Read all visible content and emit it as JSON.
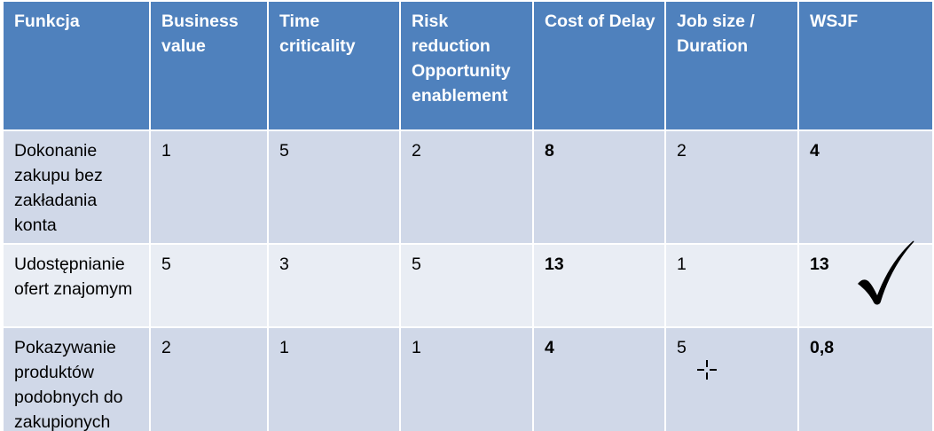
{
  "table": {
    "headers": [
      "Funkcja",
      "Business value",
      "Time criticality",
      "Risk reduction Opportunity enablement",
      "Cost of Delay",
      "Job size / Duration",
      "WSJF"
    ],
    "rows": [
      {
        "feature": "Dokonanie zakupu bez zakładania konta",
        "business_value": "1",
        "time_criticality": "5",
        "risk_reduction": "2",
        "cost_of_delay": "8",
        "job_size": "2",
        "wsjf": "4"
      },
      {
        "feature": "Udostępnianie ofert znajomym",
        "business_value": "5",
        "time_criticality": "3",
        "risk_reduction": "5",
        "cost_of_delay": "13",
        "job_size": "1",
        "wsjf": "13",
        "selected": true
      },
      {
        "feature": "Pokazywanie produktów podobnych do zakupionych",
        "business_value": "2",
        "time_criticality": "1",
        "risk_reduction": "1",
        "cost_of_delay": "4",
        "job_size": "5",
        "wsjf": "0,8"
      }
    ]
  },
  "colors": {
    "header_bg": "#4f81bd",
    "row_band_dark": "#d0d8e8",
    "row_band_light": "#e9edf4",
    "border": "#ffffff"
  },
  "icons": {
    "selected_row_marker": "checkmark-icon",
    "cursor": "move-cursor-icon"
  }
}
